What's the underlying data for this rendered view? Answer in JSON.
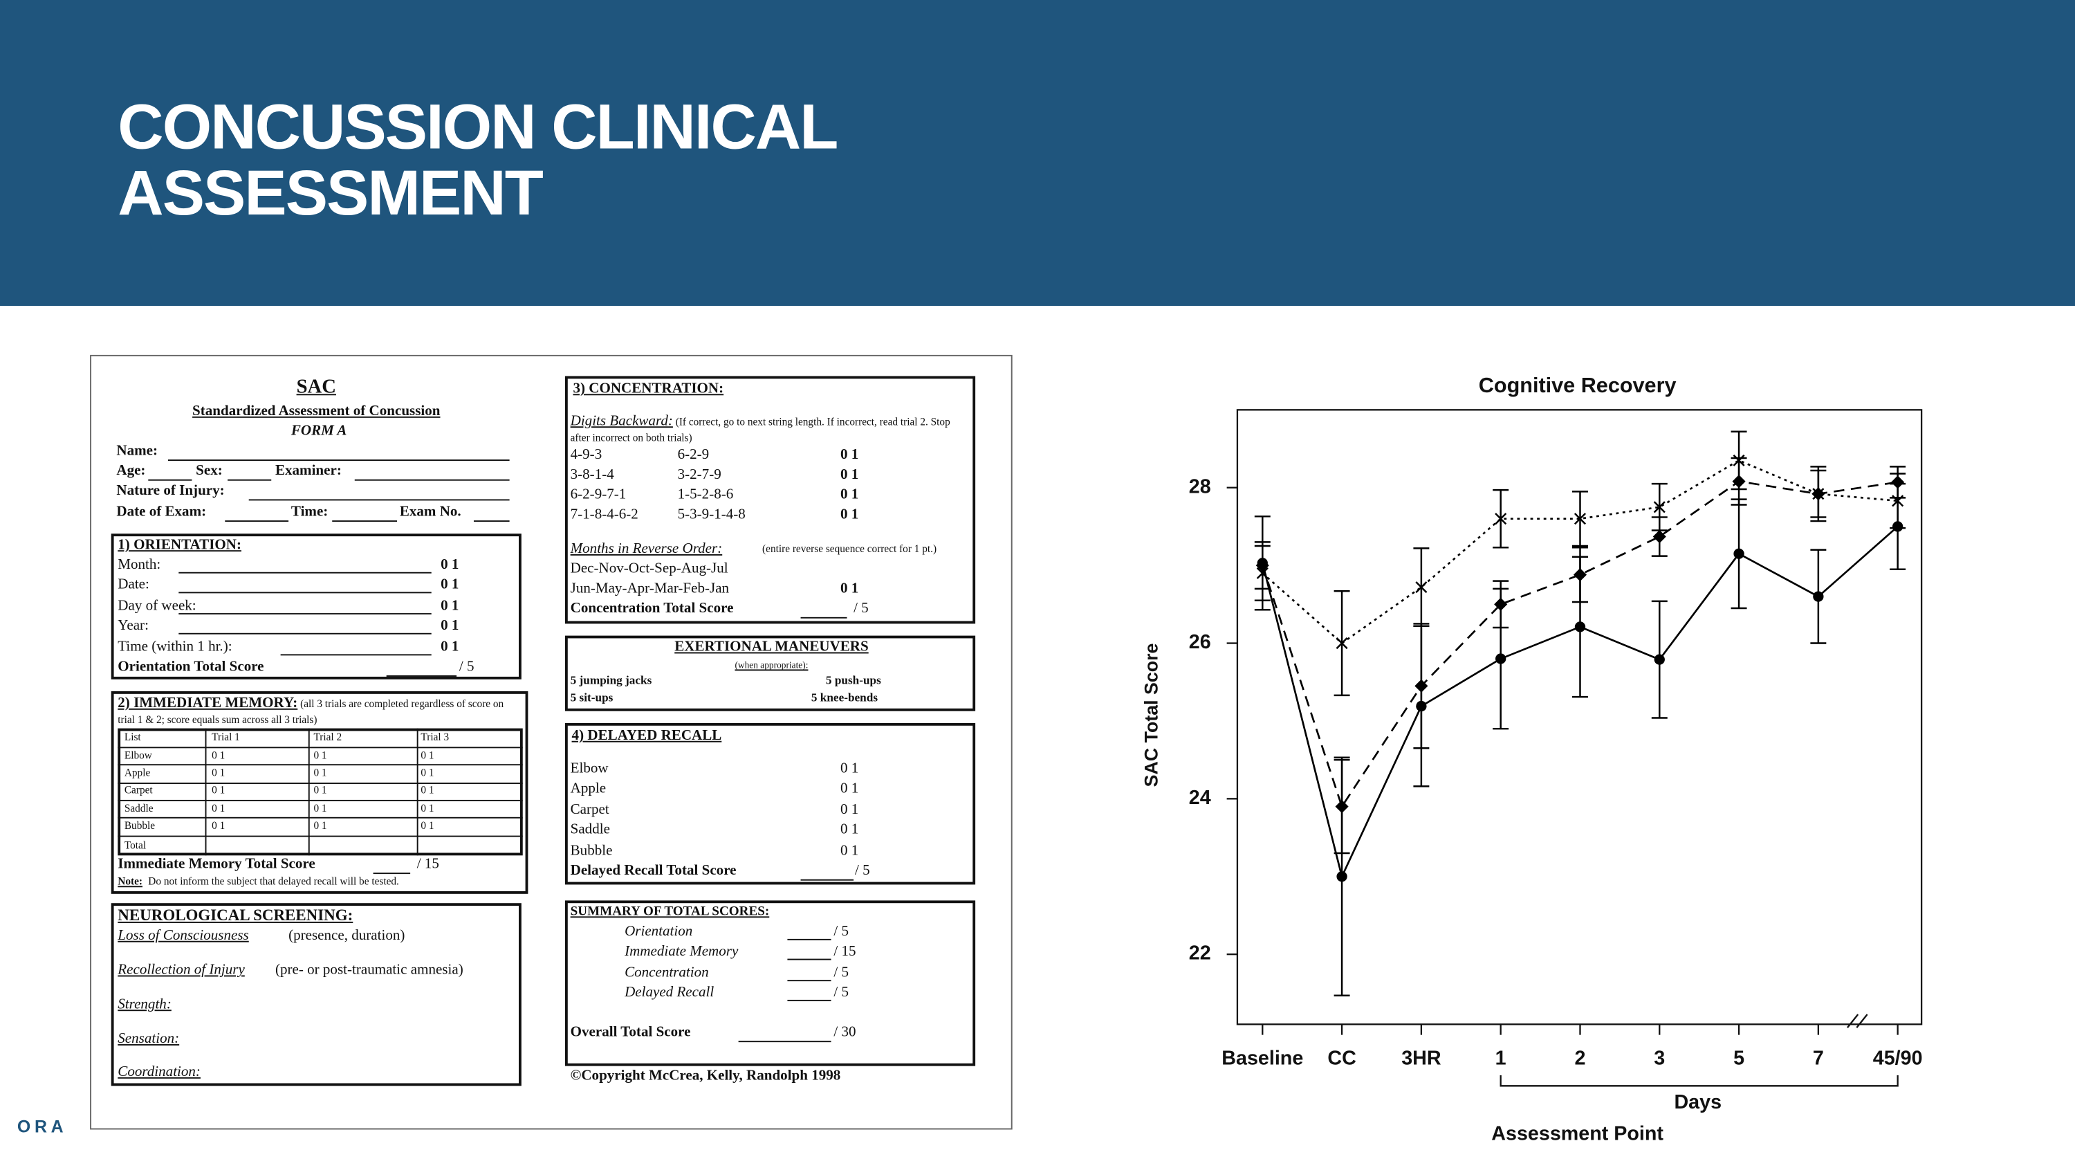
{
  "header": {
    "title": "CONCUSSION CLINICAL ASSESSMENT"
  },
  "footer": {
    "text": "ORA"
  },
  "form": {
    "title": "SAC",
    "subtitle": "Standardized Assessment of Concussion",
    "form_name": "FORM A",
    "name": "Name:",
    "age": "Age:",
    "sex": "Sex:",
    "examiner": "Examiner:",
    "injury": "Nature of Injury:",
    "date": "Date of Exam:",
    "time": "Time:",
    "exam_no": "Exam No.",
    "orientation": {
      "heading": "1) ORIENTATION:",
      "items": [
        [
          "Month:",
          "0 1"
        ],
        [
          "Date:",
          "0 1"
        ],
        [
          "Day of week:",
          "0 1"
        ],
        [
          "Year:",
          "0 1"
        ],
        [
          "Time (within 1 hr.):",
          "0 1"
        ]
      ],
      "total": "Orientation Total Score",
      "max": "/ 5"
    },
    "memory": {
      "heading": "2) IMMEDIATE MEMORY:",
      "note": "(all 3 trials are completed regardless of score on trial 1 & 2; score equals sum across all 3 trials)",
      "columns": [
        "List",
        "Trial 1",
        "Trial 2",
        "Trial 3"
      ],
      "rows": [
        [
          "Elbow",
          "0 1",
          "0 1",
          "0 1"
        ],
        [
          "Apple",
          "0 1",
          "0 1",
          "0 1"
        ],
        [
          "Carpet",
          "0 1",
          "0 1",
          "0 1"
        ],
        [
          "Saddle",
          "0 1",
          "0 1",
          "0 1"
        ],
        [
          "Bubble",
          "0 1",
          "0 1",
          "0 1"
        ]
      ],
      "total_row": "Total",
      "total": "Immediate Memory Total Score",
      "max": "/ 15",
      "footnote_label": "Note:",
      "footnote": "Do not inform the subject that delayed recall will be tested."
    },
    "neuro": {
      "heading": "NEUROLOGICAL SCREENING:",
      "loc": "Loss of Consciousness",
      "loc_detail": "(presence, duration)",
      "recollection": "Recollection of Injury",
      "recollection_detail": "(pre- or post-traumatic amnesia)",
      "others": [
        "Strength:",
        "Sensation:",
        "Coordination:"
      ]
    },
    "concentration": {
      "heading": "3) CONCENTRATION:",
      "digits_label": "Digits Backward:",
      "digits_note": "(If correct, go to next string length. If incorrect, read trial 2. Stop after incorrect on both trials)",
      "digits": [
        [
          "4-9-3",
          "6-2-9",
          "0 1"
        ],
        [
          "3-8-1-4",
          "3-2-7-9",
          "0 1"
        ],
        [
          "6-2-9-7-1",
          "1-5-2-8-6",
          "0 1"
        ],
        [
          "7-1-8-4-6-2",
          "5-3-9-1-4-8",
          "0 1"
        ]
      ],
      "months_label": "Months in Reverse Order:",
      "months_note": "(entire reverse sequence correct for 1 pt.)",
      "months": [
        "Dec-Nov-Oct-Sep-Aug-Jul",
        "Jun-May-Apr-Mar-Feb-Jan"
      ],
      "months_score": "0 1",
      "total": "Concentration Total Score",
      "max": "/ 5"
    },
    "exertion": {
      "heading": "EXERTIONAL MANEUVERS",
      "note": "(when appropriate):",
      "items": [
        "5 jumping jacks",
        "5 push-ups",
        "5 sit-ups",
        "5 knee-bends"
      ]
    },
    "recall": {
      "heading": "4) DELAYED RECALL",
      "items": [
        [
          "Elbow",
          "0 1"
        ],
        [
          "Apple",
          "0 1"
        ],
        [
          "Carpet",
          "0 1"
        ],
        [
          "Saddle",
          "0 1"
        ],
        [
          "Bubble",
          "0 1"
        ]
      ],
      "total": "Delayed Recall Total Score",
      "max": "/ 5"
    },
    "summary": {
      "heading": "SUMMARY OF TOTAL SCORES:",
      "items": [
        [
          "Orientation",
          "/ 5"
        ],
        [
          "Immediate Memory",
          "/ 15"
        ],
        [
          "Concentration",
          "/ 5"
        ],
        [
          "Delayed Recall",
          "/ 5"
        ]
      ],
      "overall": "Overall Total Score",
      "overall_max": "/ 30"
    },
    "copyright": "©Copyright McCrea, Kelly, Randolph 1998"
  },
  "chart_data": {
    "type": "line",
    "title": "Cognitive Recovery",
    "y_label": "SAC Total Score",
    "x_label": "Days",
    "x_title": "Assessment Point",
    "categories": [
      "Baseline",
      "CC",
      "3HR",
      "1",
      "2",
      "3",
      "5",
      "7",
      "45/90"
    ],
    "ylim": [
      21.1,
      29
    ],
    "yticks": [
      22,
      24,
      26,
      28
    ],
    "series": [
      {
        "line_style": "solid",
        "marker": "circle",
        "color": "#000000",
        "values": [
          27.03,
          23.0,
          25.19,
          25.8,
          26.21,
          25.79,
          27.15,
          26.6,
          27.5
        ],
        "errors": [
          0.6,
          1.53,
          1.03,
          0.9,
          0.9,
          0.75,
          0.7,
          0.6,
          0.55
        ]
      },
      {
        "line_style": "dashed",
        "marker": "diamond",
        "color": "#000000",
        "values": [
          27.0,
          23.9,
          25.45,
          26.5,
          26.88,
          27.37,
          28.08,
          27.92,
          28.07
        ],
        "errors": [
          0.3,
          0.6,
          0.8,
          0.3,
          0.35,
          0.25,
          0.3,
          0.3,
          0.2
        ]
      },
      {
        "line_style": "dotted",
        "marker": "x",
        "color": "#000000",
        "values": [
          26.9,
          26.0,
          26.72,
          27.6,
          27.6,
          27.75,
          28.35,
          27.92,
          27.83
        ],
        "errors": [
          0.35,
          0.67,
          0.5,
          0.37,
          0.35,
          0.3,
          0.37,
          0.35,
          0.35
        ]
      }
    ]
  }
}
